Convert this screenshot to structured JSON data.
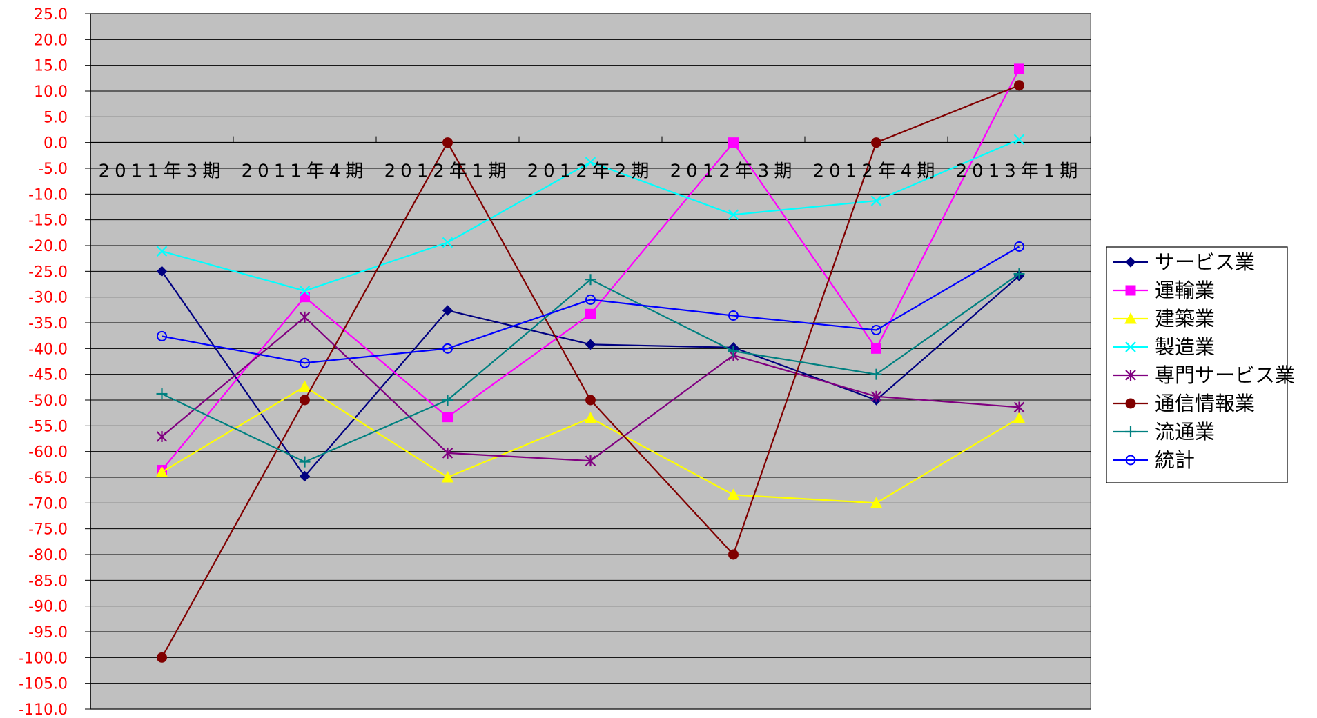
{
  "chart_data": {
    "type": "line",
    "title": "",
    "xlabel": "",
    "ylabel": "",
    "ylim": [
      -110,
      25
    ],
    "ytick_step": 5,
    "grid": true,
    "legend_position": "right",
    "plot_background": "#c0c0c0",
    "ytick_color": "#ff0000",
    "categories": [
      "2011年3期",
      "2011年4期",
      "2012年1期",
      "2012年2期",
      "2012年3期",
      "2012年4期",
      "2013年1期"
    ],
    "series": [
      {
        "name": "サービス業",
        "color": "#000080",
        "marker": "diamond",
        "values": [
          -25.0,
          -64.8,
          -32.6,
          -39.2,
          -39.8,
          -50.0,
          -25.9
        ]
      },
      {
        "name": "運輸業",
        "color": "#ff00ff",
        "marker": "square",
        "values": [
          -63.6,
          -30.0,
          -53.3,
          -33.3,
          0.0,
          -40.0,
          14.3
        ]
      },
      {
        "name": "建築業",
        "color": "#ffff00",
        "marker": "triangle",
        "values": [
          -64.0,
          -47.4,
          -65.0,
          -53.5,
          -68.4,
          -70.0,
          -53.5
        ]
      },
      {
        "name": "製造業",
        "color": "#00ffff",
        "marker": "x",
        "values": [
          -21.1,
          -28.8,
          -19.4,
          -3.8,
          -14.0,
          -11.3,
          0.6
        ]
      },
      {
        "name": "専門サービス業",
        "color": "#800080",
        "marker": "asterisk",
        "values": [
          -57.1,
          -33.9,
          -60.3,
          -61.8,
          -41.3,
          -49.3,
          -51.4
        ]
      },
      {
        "name": "通信情報業",
        "color": "#800000",
        "marker": "circle",
        "values": [
          -100.0,
          -50.0,
          0.0,
          -50.0,
          -80.0,
          0.0,
          11.1
        ]
      },
      {
        "name": "流通業",
        "color": "#008080",
        "marker": "plus",
        "values": [
          -48.8,
          -62.0,
          -50.0,
          -26.6,
          -40.5,
          -45.0,
          -25.5
        ]
      },
      {
        "name": "統計",
        "color": "#0000ff",
        "marker": "open-circle",
        "values": [
          -37.6,
          -42.8,
          -40.0,
          -30.5,
          -33.6,
          -36.4,
          -20.2
        ]
      }
    ]
  }
}
